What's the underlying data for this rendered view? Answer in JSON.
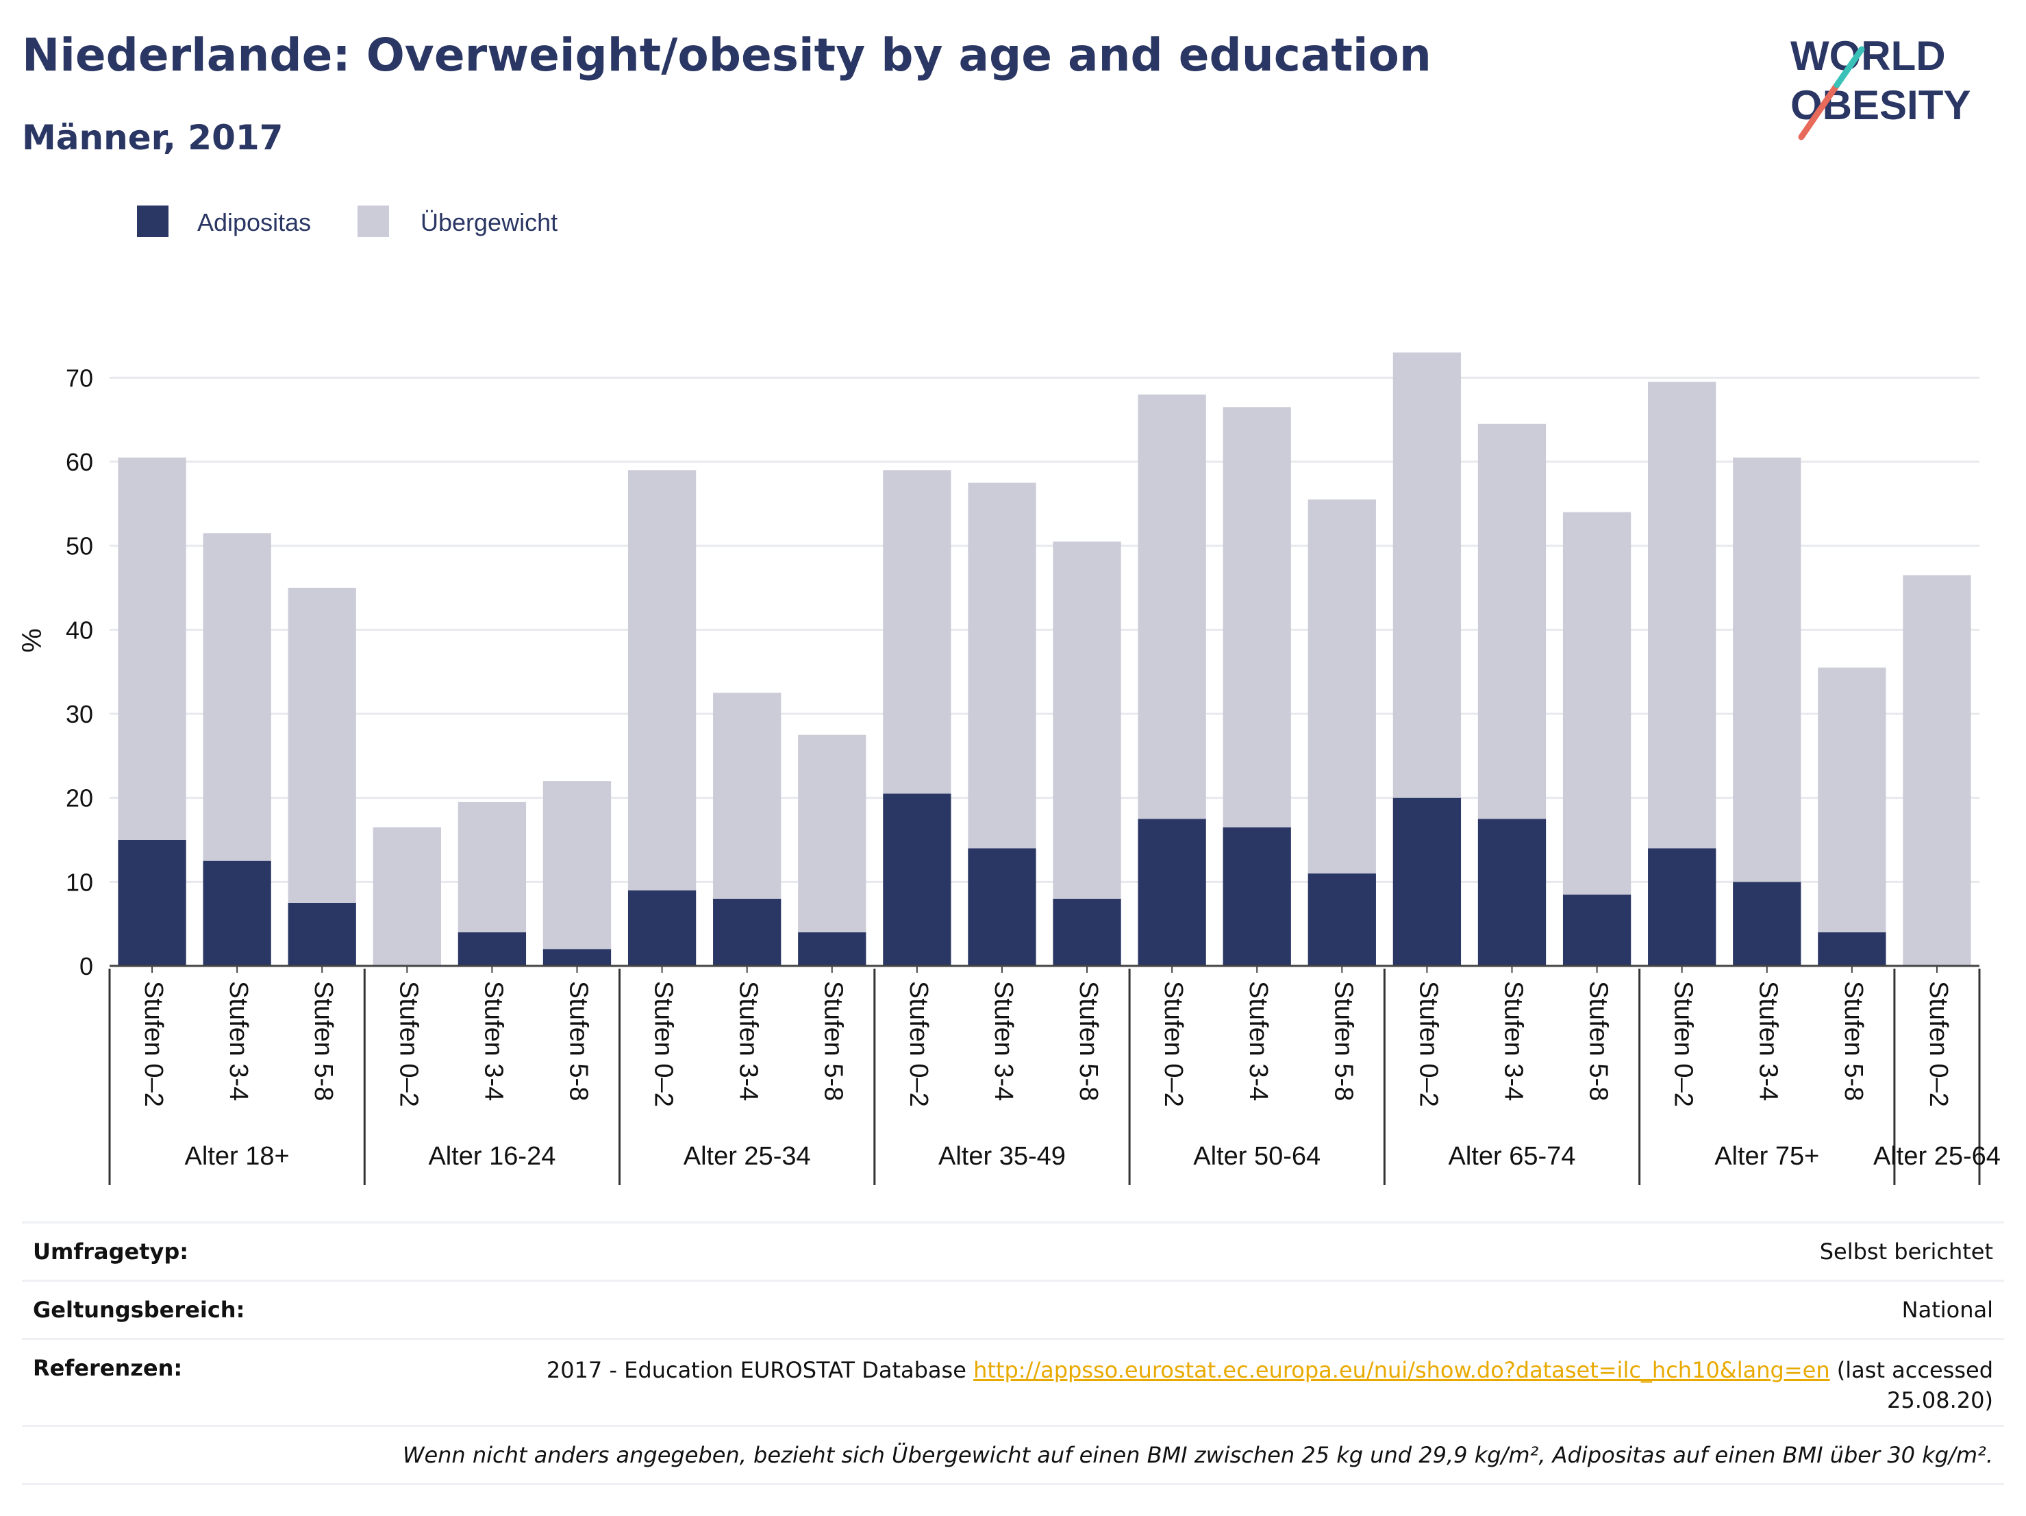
{
  "title": "Niederlande: Overweight/obesity by age and education",
  "subtitle": "Männer, 2017",
  "logo": {
    "line1": "WORLD",
    "line2": "OBESITY"
  },
  "colors": {
    "obesity": "#2a3663",
    "overweight": "#cbccd8",
    "text": "#2a3663",
    "link": "#e8a900"
  },
  "chart_data": {
    "type": "bar",
    "stacked": true,
    "ylabel": "%",
    "ylim": [
      0,
      75
    ],
    "yticks": [
      0,
      10,
      20,
      30,
      40,
      50,
      60,
      70
    ],
    "grid": true,
    "legend_position": "top-left",
    "series": [
      {
        "name": "Adipositas",
        "values": [
          15,
          12.5,
          7.5,
          0,
          4,
          2,
          9,
          8,
          4,
          20.5,
          14,
          8,
          17.5,
          16.5,
          11,
          20,
          17.5,
          8.5,
          14,
          10,
          4,
          0
        ]
      },
      {
        "name": "Übergewicht",
        "values": [
          45.5,
          39,
          37.5,
          16.5,
          15.5,
          20,
          50,
          24.5,
          23.5,
          38.5,
          43.5,
          42.5,
          50.5,
          50,
          44.5,
          53,
          47,
          45.5,
          55.5,
          50.5,
          31.5,
          46.5
        ]
      }
    ],
    "categories": [
      "Stufen 0–2",
      "Stufen 3-4",
      "Stufen 5-8",
      "Stufen 0–2",
      "Stufen 3-4",
      "Stufen 5-8",
      "Stufen 0–2",
      "Stufen 3-4",
      "Stufen 5-8",
      "Stufen 0–2",
      "Stufen 3-4",
      "Stufen 5-8",
      "Stufen 0–2",
      "Stufen 3-4",
      "Stufen 5-8",
      "Stufen 0–2",
      "Stufen 3-4",
      "Stufen 5-8",
      "Stufen 0–2",
      "Stufen 3-4",
      "Stufen 5-8",
      "Stufen 0–2"
    ],
    "groups": [
      {
        "label": "Alter 18+",
        "count": 3
      },
      {
        "label": "Alter 16-24",
        "count": 3
      },
      {
        "label": "Alter 25-34",
        "count": 3
      },
      {
        "label": "Alter 35-49",
        "count": 3
      },
      {
        "label": "Alter 50-64",
        "count": 3
      },
      {
        "label": "Alter 65-74",
        "count": 3
      },
      {
        "label": "Alter 75+",
        "count": 3
      },
      {
        "label": "Alter 25-64",
        "count": 1
      }
    ]
  },
  "info": {
    "survey_label": "Umfragetyp:",
    "survey_value": "Selbst berichtet",
    "scope_label": "Geltungsbereich:",
    "scope_value": "National",
    "refs_label": "Referenzen:",
    "refs_prefix": "2017 - Education EUROSTAT Database ",
    "refs_link": "http://appsso.eurostat.ec.europa.eu/nui/show.do?dataset=ilc_hch10&lang=en",
    "refs_suffix": " (last accessed 25.08.20)",
    "footnote": "Wenn nicht anders angegeben, bezieht sich Übergewicht auf einen BMI zwischen 25 kg und 29,9 kg/m², Adipositas auf einen BMI über 30 kg/m²."
  }
}
